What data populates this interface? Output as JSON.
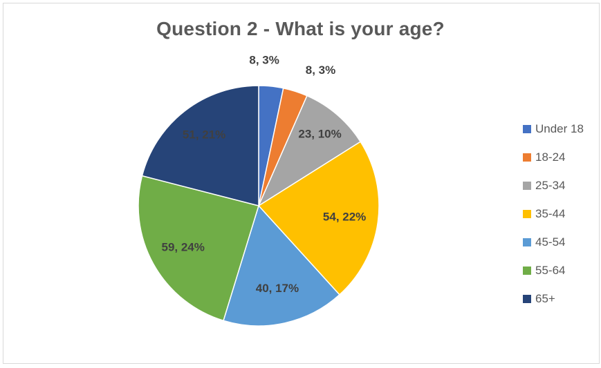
{
  "chart_data": {
    "type": "pie",
    "title": "Question 2 - What is your age?",
    "categories": [
      "Under 18",
      "18-24",
      "25-34",
      "35-44",
      "45-54",
      "55-64",
      "65+"
    ],
    "values": [
      8,
      8,
      23,
      54,
      40,
      59,
      51
    ],
    "percent_labels": [
      "8, 3%",
      "8, 3%",
      "23, 10%",
      "54, 22%",
      "40, 17%",
      "59, 24%",
      "51, 21%"
    ],
    "colors": [
      "#4472C4",
      "#ED7D31",
      "#A5A5A5",
      "#FFC000",
      "#5B9BD5",
      "#70AD47",
      "#264478"
    ],
    "legend_position": "right",
    "start_angle": "12 o'clock, clockwise"
  }
}
